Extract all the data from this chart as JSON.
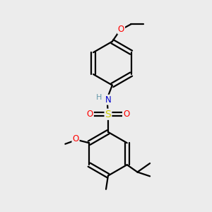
{
  "bg_color": "#ececec",
  "bond_color": "#000000",
  "atom_colors": {
    "N": "#0000cc",
    "O": "#ff0000",
    "S": "#cccc00",
    "H": "#6699aa",
    "C": "#000000"
  },
  "figsize": [
    3.0,
    3.0
  ],
  "dpi": 100,
  "xlim": [
    0,
    10
  ],
  "ylim": [
    0,
    10
  ]
}
